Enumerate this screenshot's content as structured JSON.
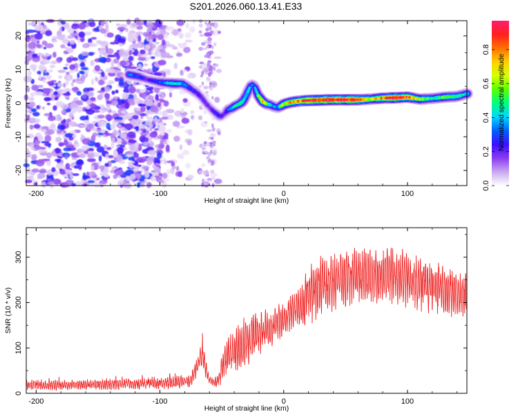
{
  "title": "S201.2026.060.13.41.E33",
  "chart_data": [
    {
      "type": "heatmap",
      "name": "spectrogram",
      "xlabel": "Height of straight line (km)",
      "ylabel": "Frequency (Hz)",
      "xlim": [
        -208,
        148
      ],
      "ylim": [
        -24.5,
        24.5
      ],
      "xticks": [
        -200,
        -100,
        0,
        100
      ],
      "yticks": [
        -20,
        -10,
        0,
        10,
        20
      ],
      "colorbar": {
        "label": "Normalized spectral amplitude",
        "range": [
          0,
          0.97
        ],
        "ticks": [
          0.0,
          0.2,
          0.4,
          0.6,
          0.8
        ],
        "colors": [
          "#ffffff",
          "#c9a8f0",
          "#8a3cf0",
          "#3a10ff",
          "#0060ff",
          "#00d8ff",
          "#00ff80",
          "#5aff00",
          "#d8ff00",
          "#ffd000",
          "#ff7000",
          "#ff2020",
          "#ff1e6e"
        ]
      },
      "ridge": {
        "x": [
          -125,
          -118,
          -110,
          -100,
          -95,
          -88,
          -82,
          -78,
          -74,
          -70,
          -66,
          -63,
          -60,
          -57,
          -54,
          -51,
          -48,
          -45,
          -42,
          -39,
          -36,
          -33,
          -30,
          -27,
          -25,
          -23,
          -21,
          -19,
          -17,
          -14,
          -11,
          -8,
          -5,
          -2,
          0,
          5,
          10,
          15,
          20,
          30,
          40,
          50,
          60,
          70,
          80,
          90,
          100,
          110,
          120,
          130,
          140,
          148
        ],
        "y": [
          8.5,
          8.0,
          7.0,
          6.2,
          6.0,
          5.8,
          5.8,
          5.0,
          4.0,
          3.0,
          1.5,
          0.0,
          -1.2,
          -2.3,
          -3.2,
          -4.0,
          -3.2,
          -2.0,
          -1.5,
          -0.8,
          -0.3,
          0.5,
          2.5,
          5.0,
          5.5,
          4.5,
          2.5,
          1.5,
          0.5,
          -0.2,
          -0.5,
          -1.0,
          -1.3,
          -0.8,
          -0.3,
          0.2,
          0.5,
          0.7,
          0.8,
          0.9,
          1.0,
          1.0,
          1.0,
          1.2,
          1.5,
          1.6,
          1.8,
          1.2,
          1.4,
          1.8,
          2.0,
          2.8
        ],
        "amplitude": [
          0.35,
          0.3,
          0.2,
          0.3,
          0.4,
          0.45,
          0.38,
          0.3,
          0.25,
          0.25,
          0.2,
          0.2,
          0.18,
          0.22,
          0.25,
          0.22,
          0.2,
          0.3,
          0.42,
          0.45,
          0.48,
          0.5,
          0.4,
          0.35,
          0.3,
          0.35,
          0.5,
          0.6,
          0.7,
          0.55,
          0.45,
          0.35,
          0.35,
          0.55,
          0.65,
          0.75,
          0.75,
          0.8,
          0.9,
          0.97,
          0.97,
          0.95,
          0.9,
          0.6,
          0.8,
          0.95,
          0.85,
          0.6,
          0.45,
          0.55,
          0.5,
          0.4
        ]
      },
      "noise_region": [
        -208,
        -52
      ]
    },
    {
      "type": "line",
      "name": "snr",
      "xlabel": "Height of straight line (km)",
      "ylabel": "SNR (10 * v/v)",
      "xlim": [
        -208,
        148
      ],
      "ylim": [
        0,
        365
      ],
      "xticks": [
        -200,
        -100,
        0,
        100
      ],
      "yticks": [
        0,
        100,
        200,
        300
      ],
      "color": "#ee2222",
      "envelope": {
        "x": [
          -208,
          -180,
          -150,
          -120,
          -100,
          -85,
          -75,
          -70,
          -66,
          -63,
          -60,
          -56,
          -52,
          -48,
          -45,
          -40,
          -35,
          -30,
          -25,
          -20,
          -15,
          -10,
          -5,
          0,
          5,
          10,
          15,
          20,
          25,
          30,
          40,
          50,
          60,
          70,
          80,
          90,
          100,
          110,
          120,
          130,
          140,
          148
        ],
        "mean": [
          18,
          18,
          19,
          20,
          22,
          24,
          28,
          60,
          85,
          55,
          30,
          22,
          35,
          70,
          85,
          95,
          105,
          115,
          125,
          135,
          140,
          145,
          155,
          165,
          175,
          185,
          200,
          220,
          230,
          235,
          245,
          255,
          260,
          262,
          265,
          260,
          250,
          240,
          235,
          230,
          220,
          215
        ],
        "amp": [
          10,
          10,
          10,
          11,
          12,
          12,
          12,
          20,
          30,
          18,
          8,
          8,
          20,
          30,
          35,
          40,
          45,
          50,
          50,
          45,
          40,
          38,
          35,
          35,
          35,
          35,
          45,
          60,
          65,
          60,
          55,
          55,
          55,
          55,
          55,
          55,
          55,
          55,
          50,
          50,
          50,
          45
        ]
      }
    }
  ]
}
